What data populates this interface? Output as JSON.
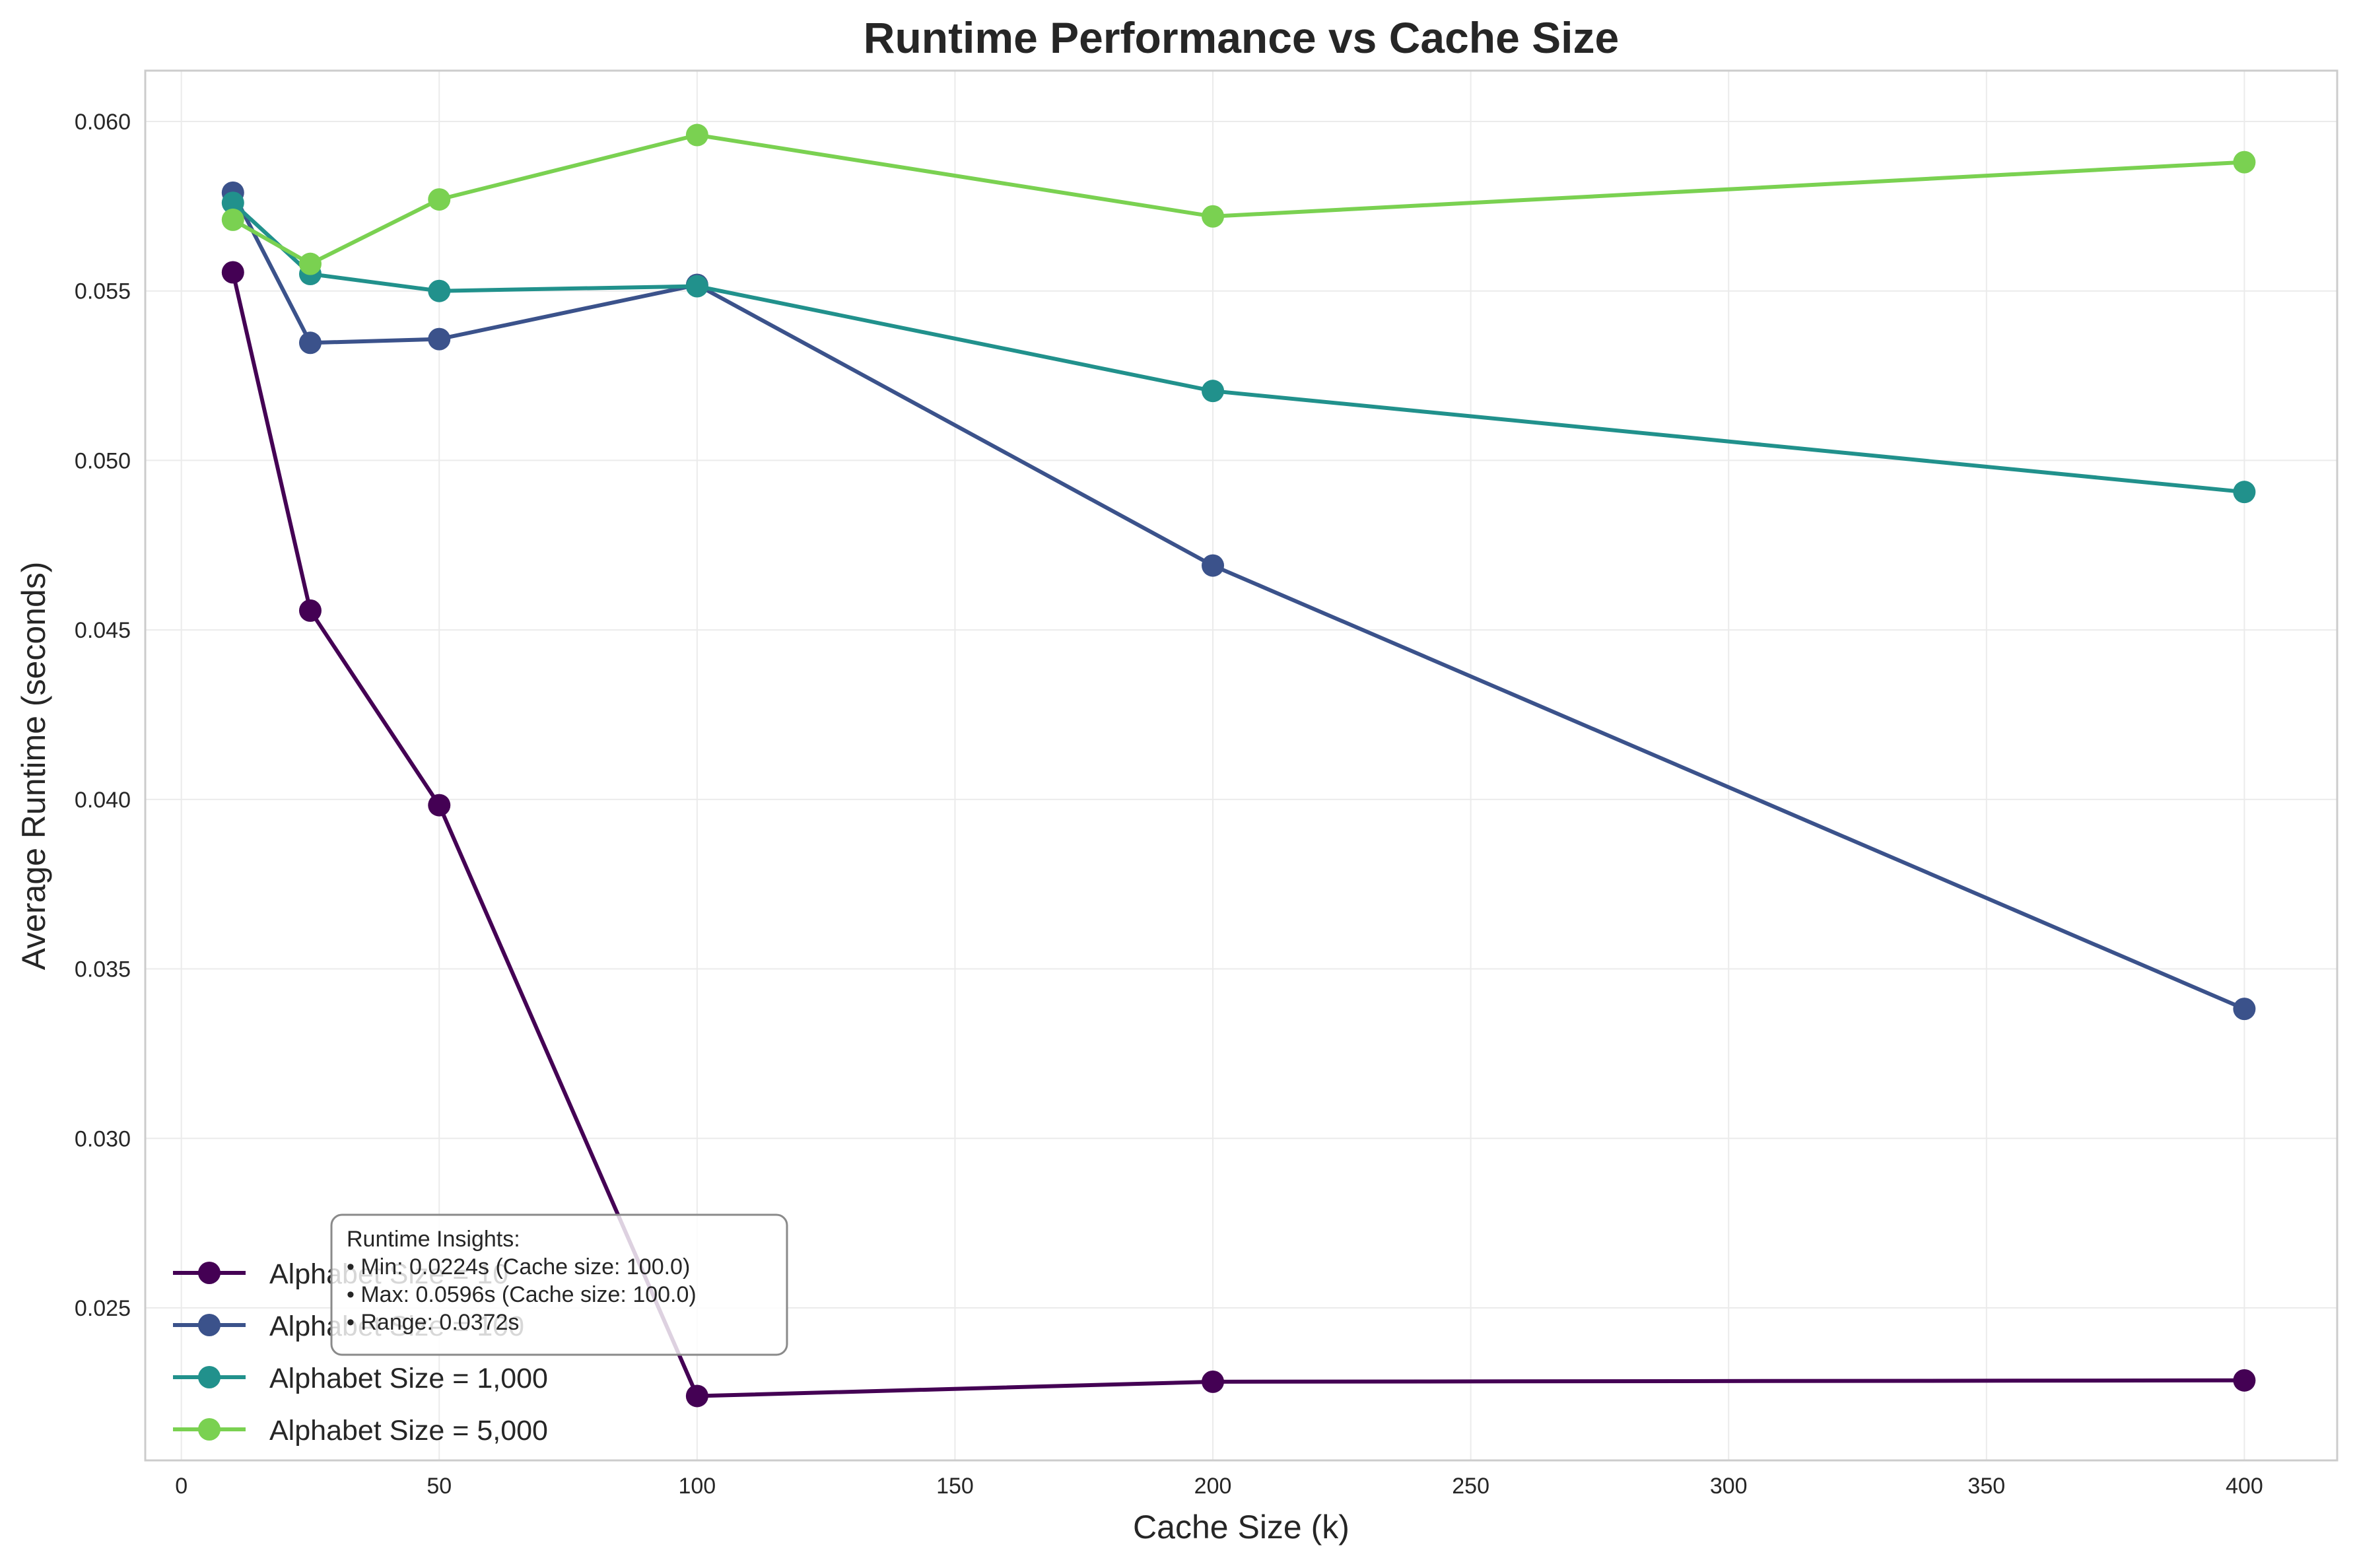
{
  "chart_data": {
    "type": "line",
    "title": "Runtime Performance vs Cache Size",
    "xlabel": "Cache Size (k)",
    "ylabel": "Average Runtime (seconds)",
    "xlim": [
      -7,
      418
    ],
    "ylim": [
      0.0205,
      0.0615
    ],
    "xticks": [
      0,
      50,
      100,
      150,
      200,
      250,
      300,
      350,
      400
    ],
    "yticks": [
      0.025,
      0.03,
      0.035,
      0.04,
      0.045,
      0.05,
      0.055,
      0.06
    ],
    "xtick_labels": [
      "0",
      "50",
      "100",
      "150",
      "200",
      "250",
      "300",
      "350",
      "400"
    ],
    "ytick_labels": [
      "0.025",
      "0.030",
      "0.035",
      "0.040",
      "0.045",
      "0.050",
      "0.055",
      "0.060"
    ],
    "grid": true,
    "legend_position": "lower-left",
    "x": [
      10,
      25,
      50,
      100,
      200,
      400
    ],
    "series": [
      {
        "name": "Alphabet Size = 10",
        "color": "#440154",
        "values": [
          0.05555,
          0.04557,
          0.03983,
          0.0224,
          0.02282,
          0.02286
        ]
      },
      {
        "name": "Alphabet Size = 100",
        "color": "#3b528b",
        "values": [
          0.0579,
          0.05347,
          0.05358,
          0.05518,
          0.0469,
          0.03382
        ]
      },
      {
        "name": "Alphabet Size = 1,000",
        "color": "#21918c",
        "values": [
          0.0576,
          0.0555,
          0.055,
          0.05514,
          0.05205,
          0.04907
        ]
      },
      {
        "name": "Alphabet Size = 5,000",
        "color": "#7ad151",
        "values": [
          0.0571,
          0.0558,
          0.0577,
          0.0596,
          0.0572,
          0.0588
        ]
      }
    ],
    "annotation": {
      "lines": [
        "Runtime Insights:",
        "• Min: 0.0224s (Cache size: 100.0)",
        "• Max: 0.0596s (Cache size: 100.0)",
        "• Range: 0.0372s"
      ]
    }
  }
}
